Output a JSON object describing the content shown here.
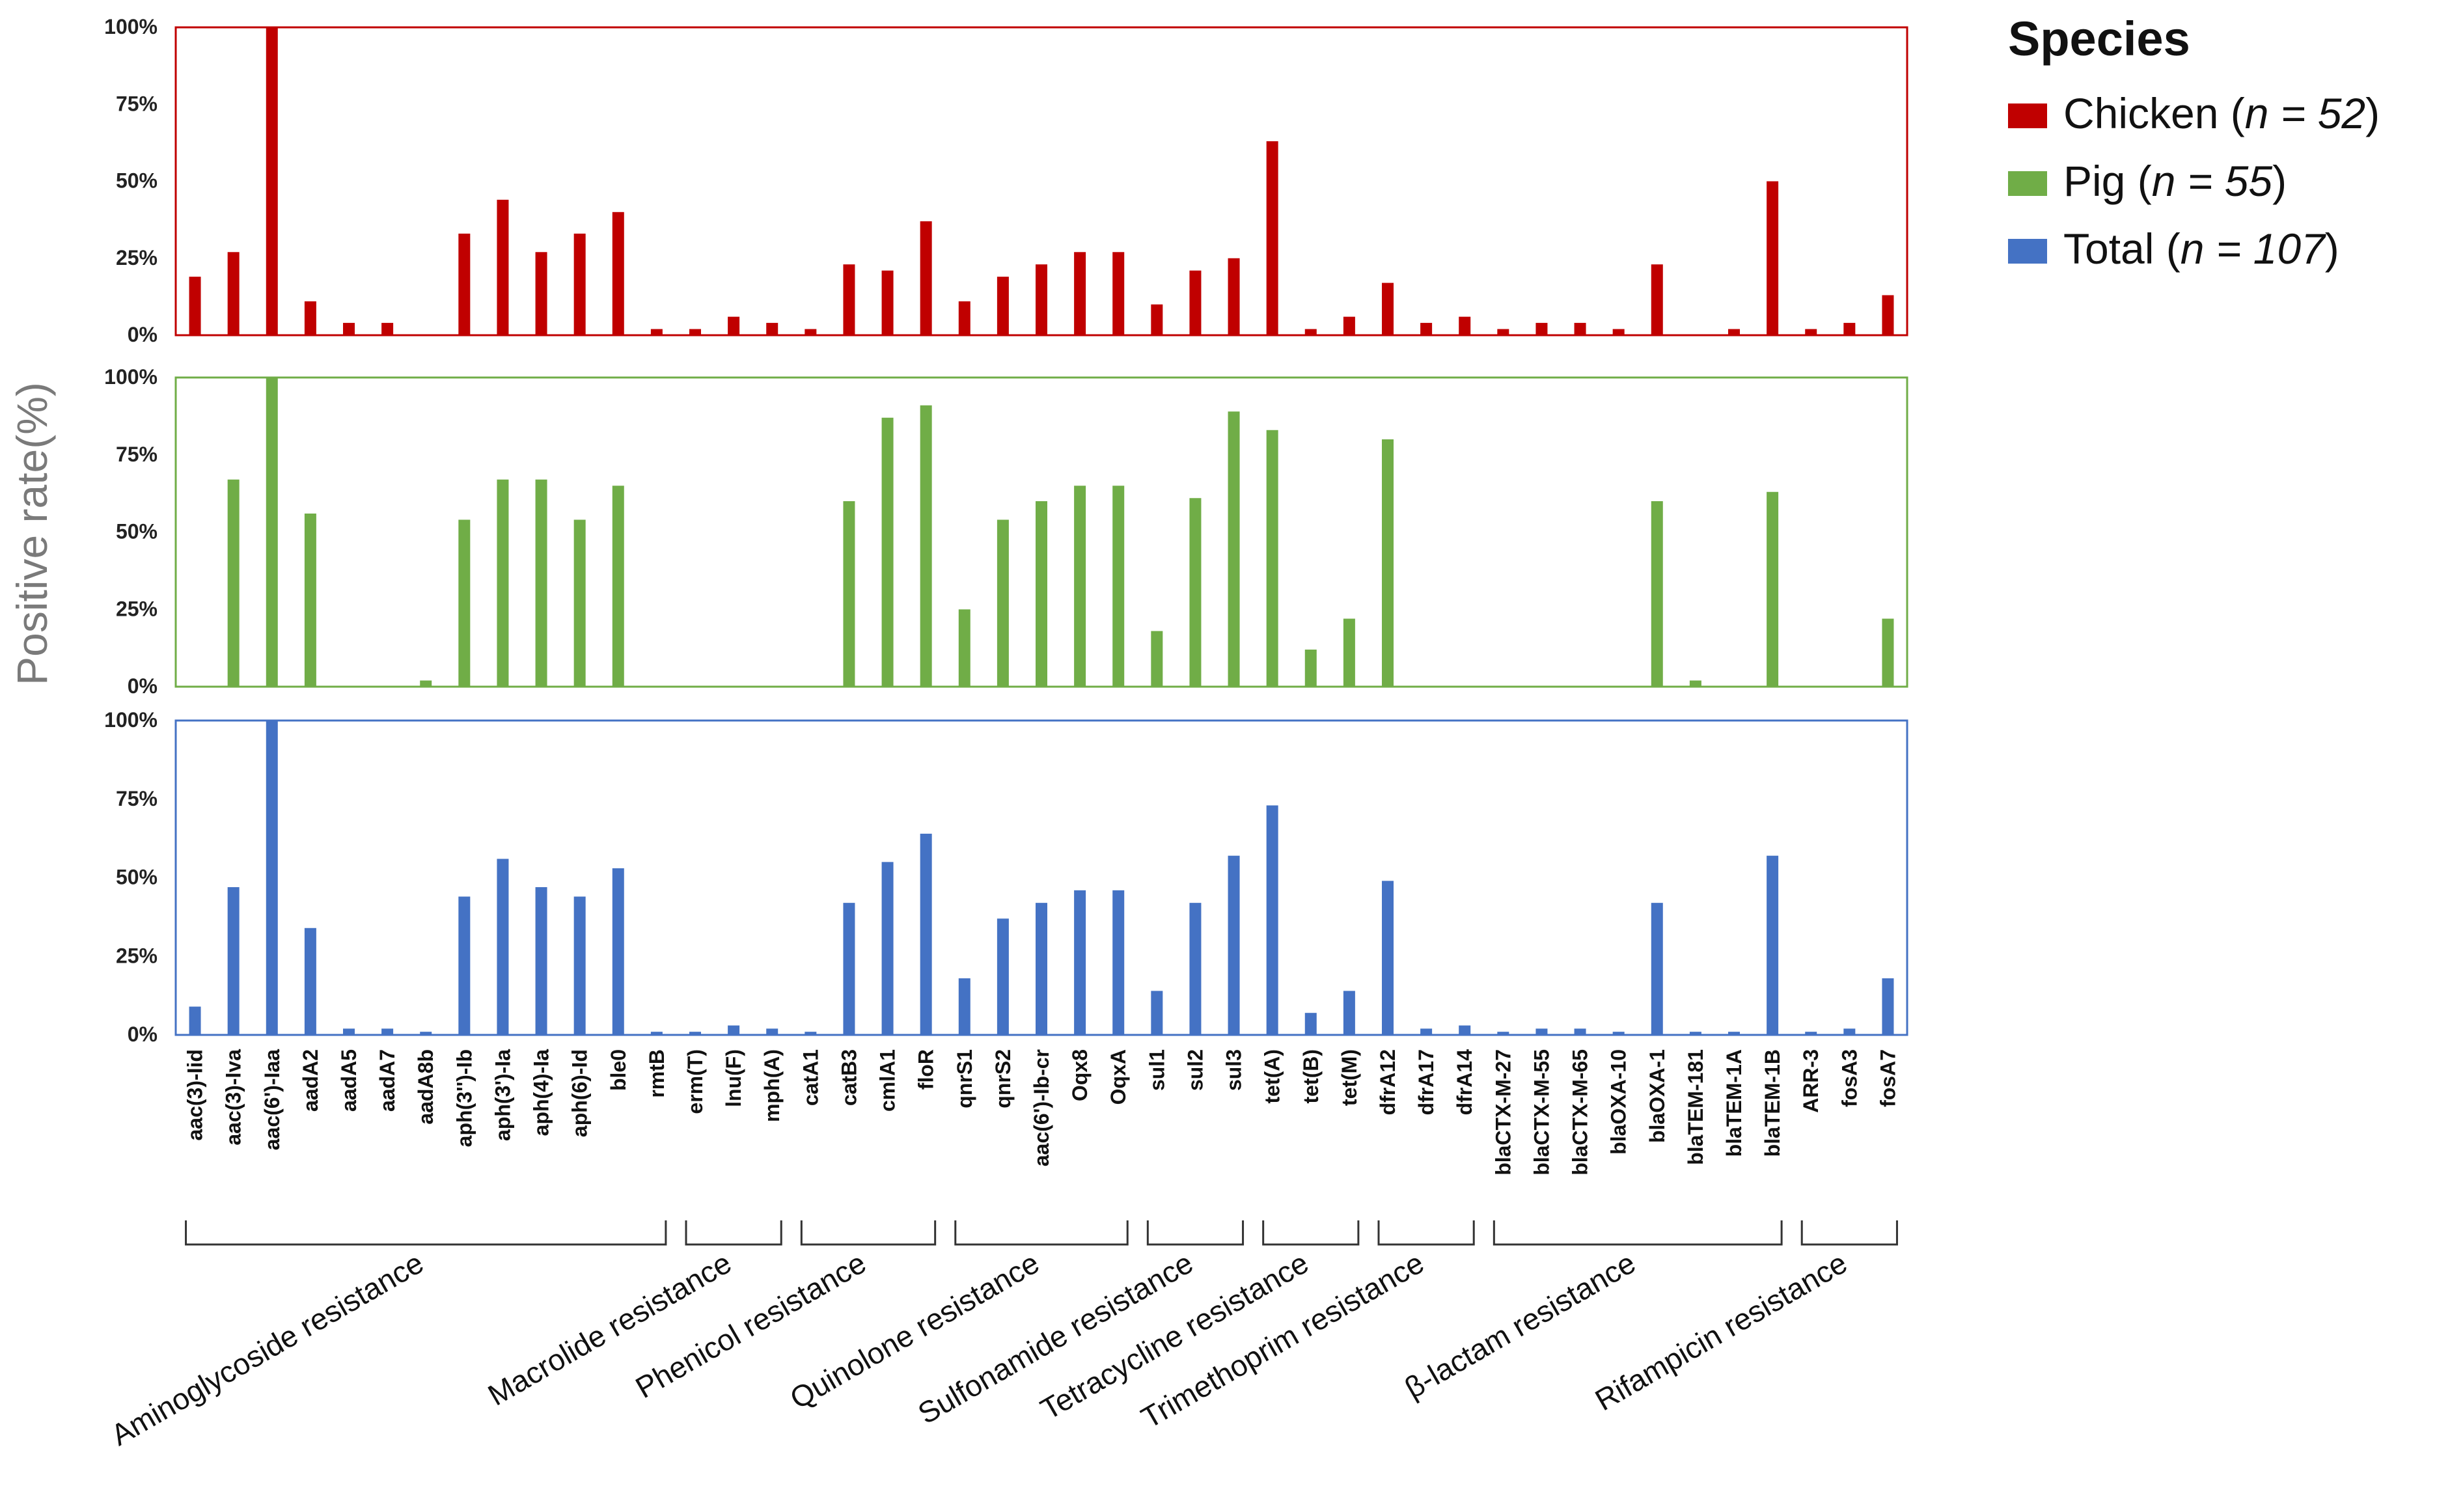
{
  "chart_data": {
    "type": "bar",
    "ylabel": "Positive rate(%)",
    "ylim": [
      0,
      100
    ],
    "yticks": [
      "0%",
      "25%",
      "50%",
      "75%",
      "100%"
    ],
    "categories": [
      "aac(3)-Iid",
      "aac(3)-Iva",
      "aac(6')-Iaa",
      "aadA2",
      "aadA5",
      "aadA7",
      "aadA8b",
      "aph(3'')-Ib",
      "aph(3')-Ia",
      "aph(4)-Ia",
      "aph(6)-Id",
      "ble0",
      "rmtB",
      "erm(T)",
      "lnu(F)",
      "mph(A)",
      "catA1",
      "catB3",
      "cmlA1",
      "floR",
      "qnrS1",
      "qnrS2",
      "aac(6')-Ib-cr",
      "Oqx8",
      "OqxA",
      "sul1",
      "sul2",
      "sul3",
      "tet(A)",
      "tet(B)",
      "tet(M)",
      "dfrA12",
      "dfrA17",
      "dfrA14",
      "blaCTX-M-27",
      "blaCTX-M-55",
      "blaCTX-M-65",
      "blaOXA-10",
      "blaOXA-1",
      "blaTEM-181",
      "blaTEM-1A",
      "blaTEM-1B",
      "ARR-3",
      "fosA3",
      "fosA7"
    ],
    "series": [
      {
        "name": "Chicken",
        "color": "#c00000",
        "values": [
          19,
          27,
          100,
          11,
          4,
          4,
          0,
          33,
          44,
          27,
          33,
          40,
          2,
          2,
          6,
          4,
          2,
          23,
          21,
          37,
          11,
          19,
          23,
          27,
          27,
          10,
          21,
          25,
          63,
          2,
          6,
          17,
          4,
          6,
          2,
          4,
          4,
          2,
          23,
          0,
          2,
          50,
          2,
          4,
          13
        ]
      },
      {
        "name": "Pig",
        "color": "#70ad47",
        "values": [
          0,
          67,
          100,
          56,
          0,
          0,
          2,
          54,
          67,
          67,
          54,
          65,
          0,
          0,
          0,
          0,
          0,
          60,
          87,
          91,
          25,
          54,
          60,
          65,
          65,
          18,
          61,
          89,
          83,
          12,
          22,
          80,
          0,
          0,
          0,
          0,
          0,
          0,
          60,
          2,
          0,
          63,
          0,
          0,
          22
        ]
      },
      {
        "name": "Total",
        "color": "#4472c4",
        "values": [
          9,
          47,
          100,
          34,
          2,
          2,
          1,
          44,
          56,
          47,
          44,
          53,
          1,
          1,
          3,
          2,
          1,
          42,
          55,
          64,
          18,
          37,
          42,
          46,
          46,
          14,
          42,
          57,
          73,
          7,
          14,
          49,
          2,
          3,
          1,
          2,
          2,
          1,
          42,
          1,
          1,
          57,
          1,
          2,
          18
        ]
      }
    ],
    "groups": [
      {
        "label": "Aminoglycoside resistance",
        "start": 0,
        "end": 12
      },
      {
        "label": "Macrolide resistance",
        "start": 13,
        "end": 15
      },
      {
        "label": "Phenicol resistance",
        "start": 16,
        "end": 19
      },
      {
        "label": "Quinolone resistance",
        "start": 20,
        "end": 24
      },
      {
        "label": "Sulfonamide resistance",
        "start": 25,
        "end": 27
      },
      {
        "label": "Tetracycline resistance",
        "start": 28,
        "end": 30
      },
      {
        "label": "Trimethoprim resistance",
        "start": 31,
        "end": 33
      },
      {
        "label": "β-lactam resistance",
        "start": 34,
        "end": 41
      },
      {
        "label": "Rifampicin resistance",
        "start": 42,
        "end": 44
      }
    ],
    "legend": {
      "title": "Species",
      "position": "top-right",
      "entries": [
        {
          "name": "Chicken",
          "n": "n = 52",
          "color": "#c00000"
        },
        {
          "name": "Pig",
          "n": "n = 55",
          "color": "#70ad47"
        },
        {
          "name": "Total",
          "n": "n = 107",
          "color": "#4472c4"
        }
      ]
    }
  }
}
